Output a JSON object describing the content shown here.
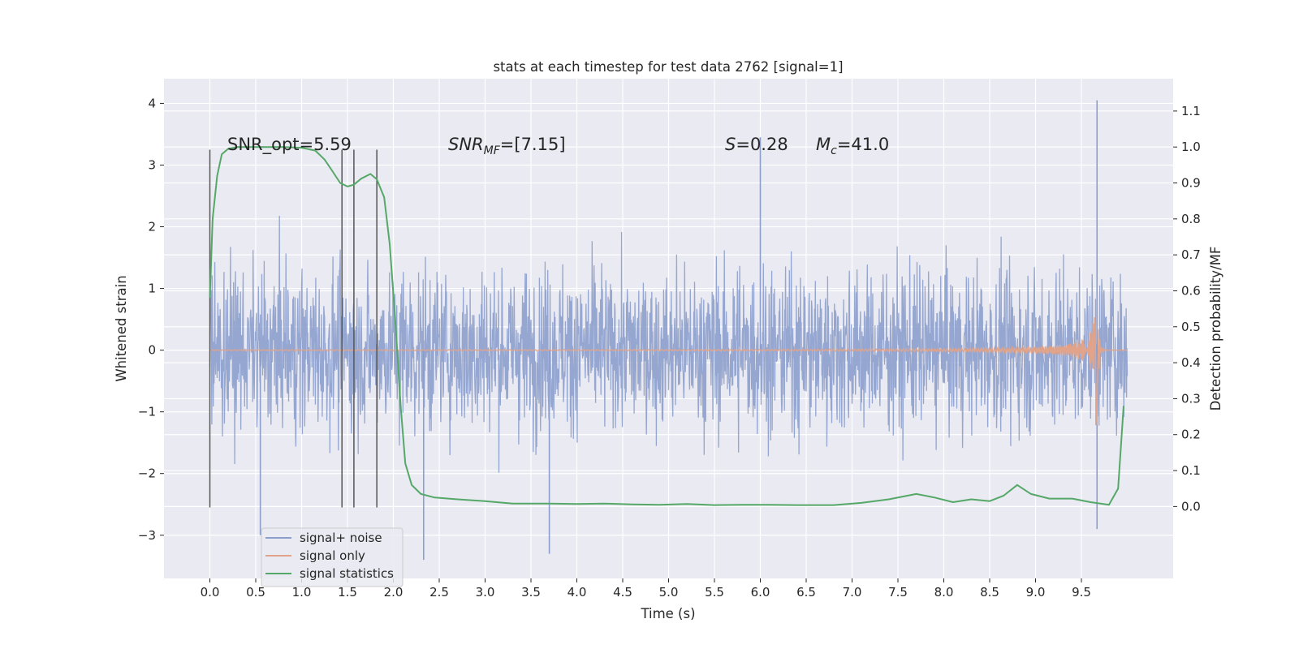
{
  "chart_data": {
    "type": "line",
    "title": "stats at each timestep for test data 2762 [signal=1]",
    "xlabel": "Time (s)",
    "ylabel": "Whitened strain",
    "ylabel_right": "Detection probability/MF",
    "xlim": [
      -0.5,
      10.5
    ],
    "ylim": [
      -3.7,
      4.4
    ],
    "ylim_right": [
      -0.2,
      1.19
    ],
    "x_ticks": [
      "0.0",
      "0.5",
      "1.0",
      "1.5",
      "2.0",
      "2.5",
      "3.0",
      "3.5",
      "4.0",
      "4.5",
      "5.0",
      "5.5",
      "6.0",
      "6.5",
      "7.0",
      "7.5",
      "8.0",
      "8.5",
      "9.0",
      "9.5"
    ],
    "y_ticks": [
      "−3",
      "−2",
      "−1",
      "0",
      "1",
      "2",
      "3",
      "4"
    ],
    "y_ticks_right": [
      "0.0",
      "0.1",
      "0.2",
      "0.3",
      "0.4",
      "0.5",
      "0.6",
      "0.7",
      "0.8",
      "0.9",
      "1.0",
      "1.1"
    ],
    "grid": true,
    "legend_position": "lower-left",
    "legend": [
      "signal+ noise",
      "signal only",
      "signal statistics"
    ],
    "annotations": {
      "snr_opt": "SNR_opt=5.59",
      "snr_mf_main": "SNR",
      "snr_mf_sub": "MF",
      "snr_mf_rest": "=[7.15]",
      "s_main": "S",
      "s_rest": "=0.28",
      "mc_main": "M",
      "mc_sub": "c",
      "mc_rest": "=41.0"
    },
    "vertical_markers": [
      0.0,
      1.44,
      1.57,
      1.82
    ],
    "series": [
      {
        "name": "signal+ noise",
        "axis": "left",
        "color": "#8c9fcc",
        "description_free": true,
        "x_range": [
          0.0,
          10.0
        ],
        "typical_amplitude": 1.5,
        "peak_values": [
          [
            0.55,
            -3.0
          ],
          [
            2.33,
            -3.4
          ],
          [
            3.7,
            -3.3
          ],
          [
            6.0,
            3.45
          ],
          [
            9.67,
            4.05
          ],
          [
            9.67,
            -2.9
          ]
        ]
      },
      {
        "name": "signal only",
        "axis": "left",
        "color": "#e1a48a",
        "x_range": [
          0.0,
          10.0
        ],
        "chirp_peak_time": 9.67,
        "chirp_peak_amplitude": 1.28
      },
      {
        "name": "signal statistics",
        "axis": "right",
        "color": "#55a868",
        "x": [
          0.0,
          0.03,
          0.08,
          0.13,
          0.2,
          0.3,
          0.5,
          0.8,
          1.0,
          1.15,
          1.25,
          1.33,
          1.42,
          1.5,
          1.57,
          1.65,
          1.75,
          1.82,
          1.9,
          1.96,
          2.02,
          2.08,
          2.13,
          2.2,
          2.3,
          2.45,
          2.7,
          3.0,
          3.3,
          3.7,
          4.0,
          4.3,
          4.6,
          4.9,
          5.2,
          5.5,
          5.8,
          6.1,
          6.4,
          6.8,
          7.1,
          7.4,
          7.7,
          7.9,
          8.1,
          8.3,
          8.5,
          8.65,
          8.8,
          8.95,
          9.15,
          9.4,
          9.6,
          9.8,
          9.9,
          9.96
        ],
        "values": [
          0.58,
          0.8,
          0.92,
          0.98,
          0.995,
          1.0,
          1.0,
          1.0,
          0.998,
          0.99,
          0.965,
          0.935,
          0.9,
          0.89,
          0.895,
          0.912,
          0.925,
          0.91,
          0.86,
          0.73,
          0.52,
          0.28,
          0.12,
          0.06,
          0.035,
          0.025,
          0.02,
          0.015,
          0.008,
          0.008,
          0.007,
          0.008,
          0.006,
          0.005,
          0.007,
          0.004,
          0.005,
          0.005,
          0.004,
          0.004,
          0.01,
          0.02,
          0.035,
          0.025,
          0.012,
          0.02,
          0.015,
          0.03,
          0.06,
          0.035,
          0.022,
          0.022,
          0.012,
          0.005,
          0.05,
          0.28
        ]
      }
    ]
  }
}
